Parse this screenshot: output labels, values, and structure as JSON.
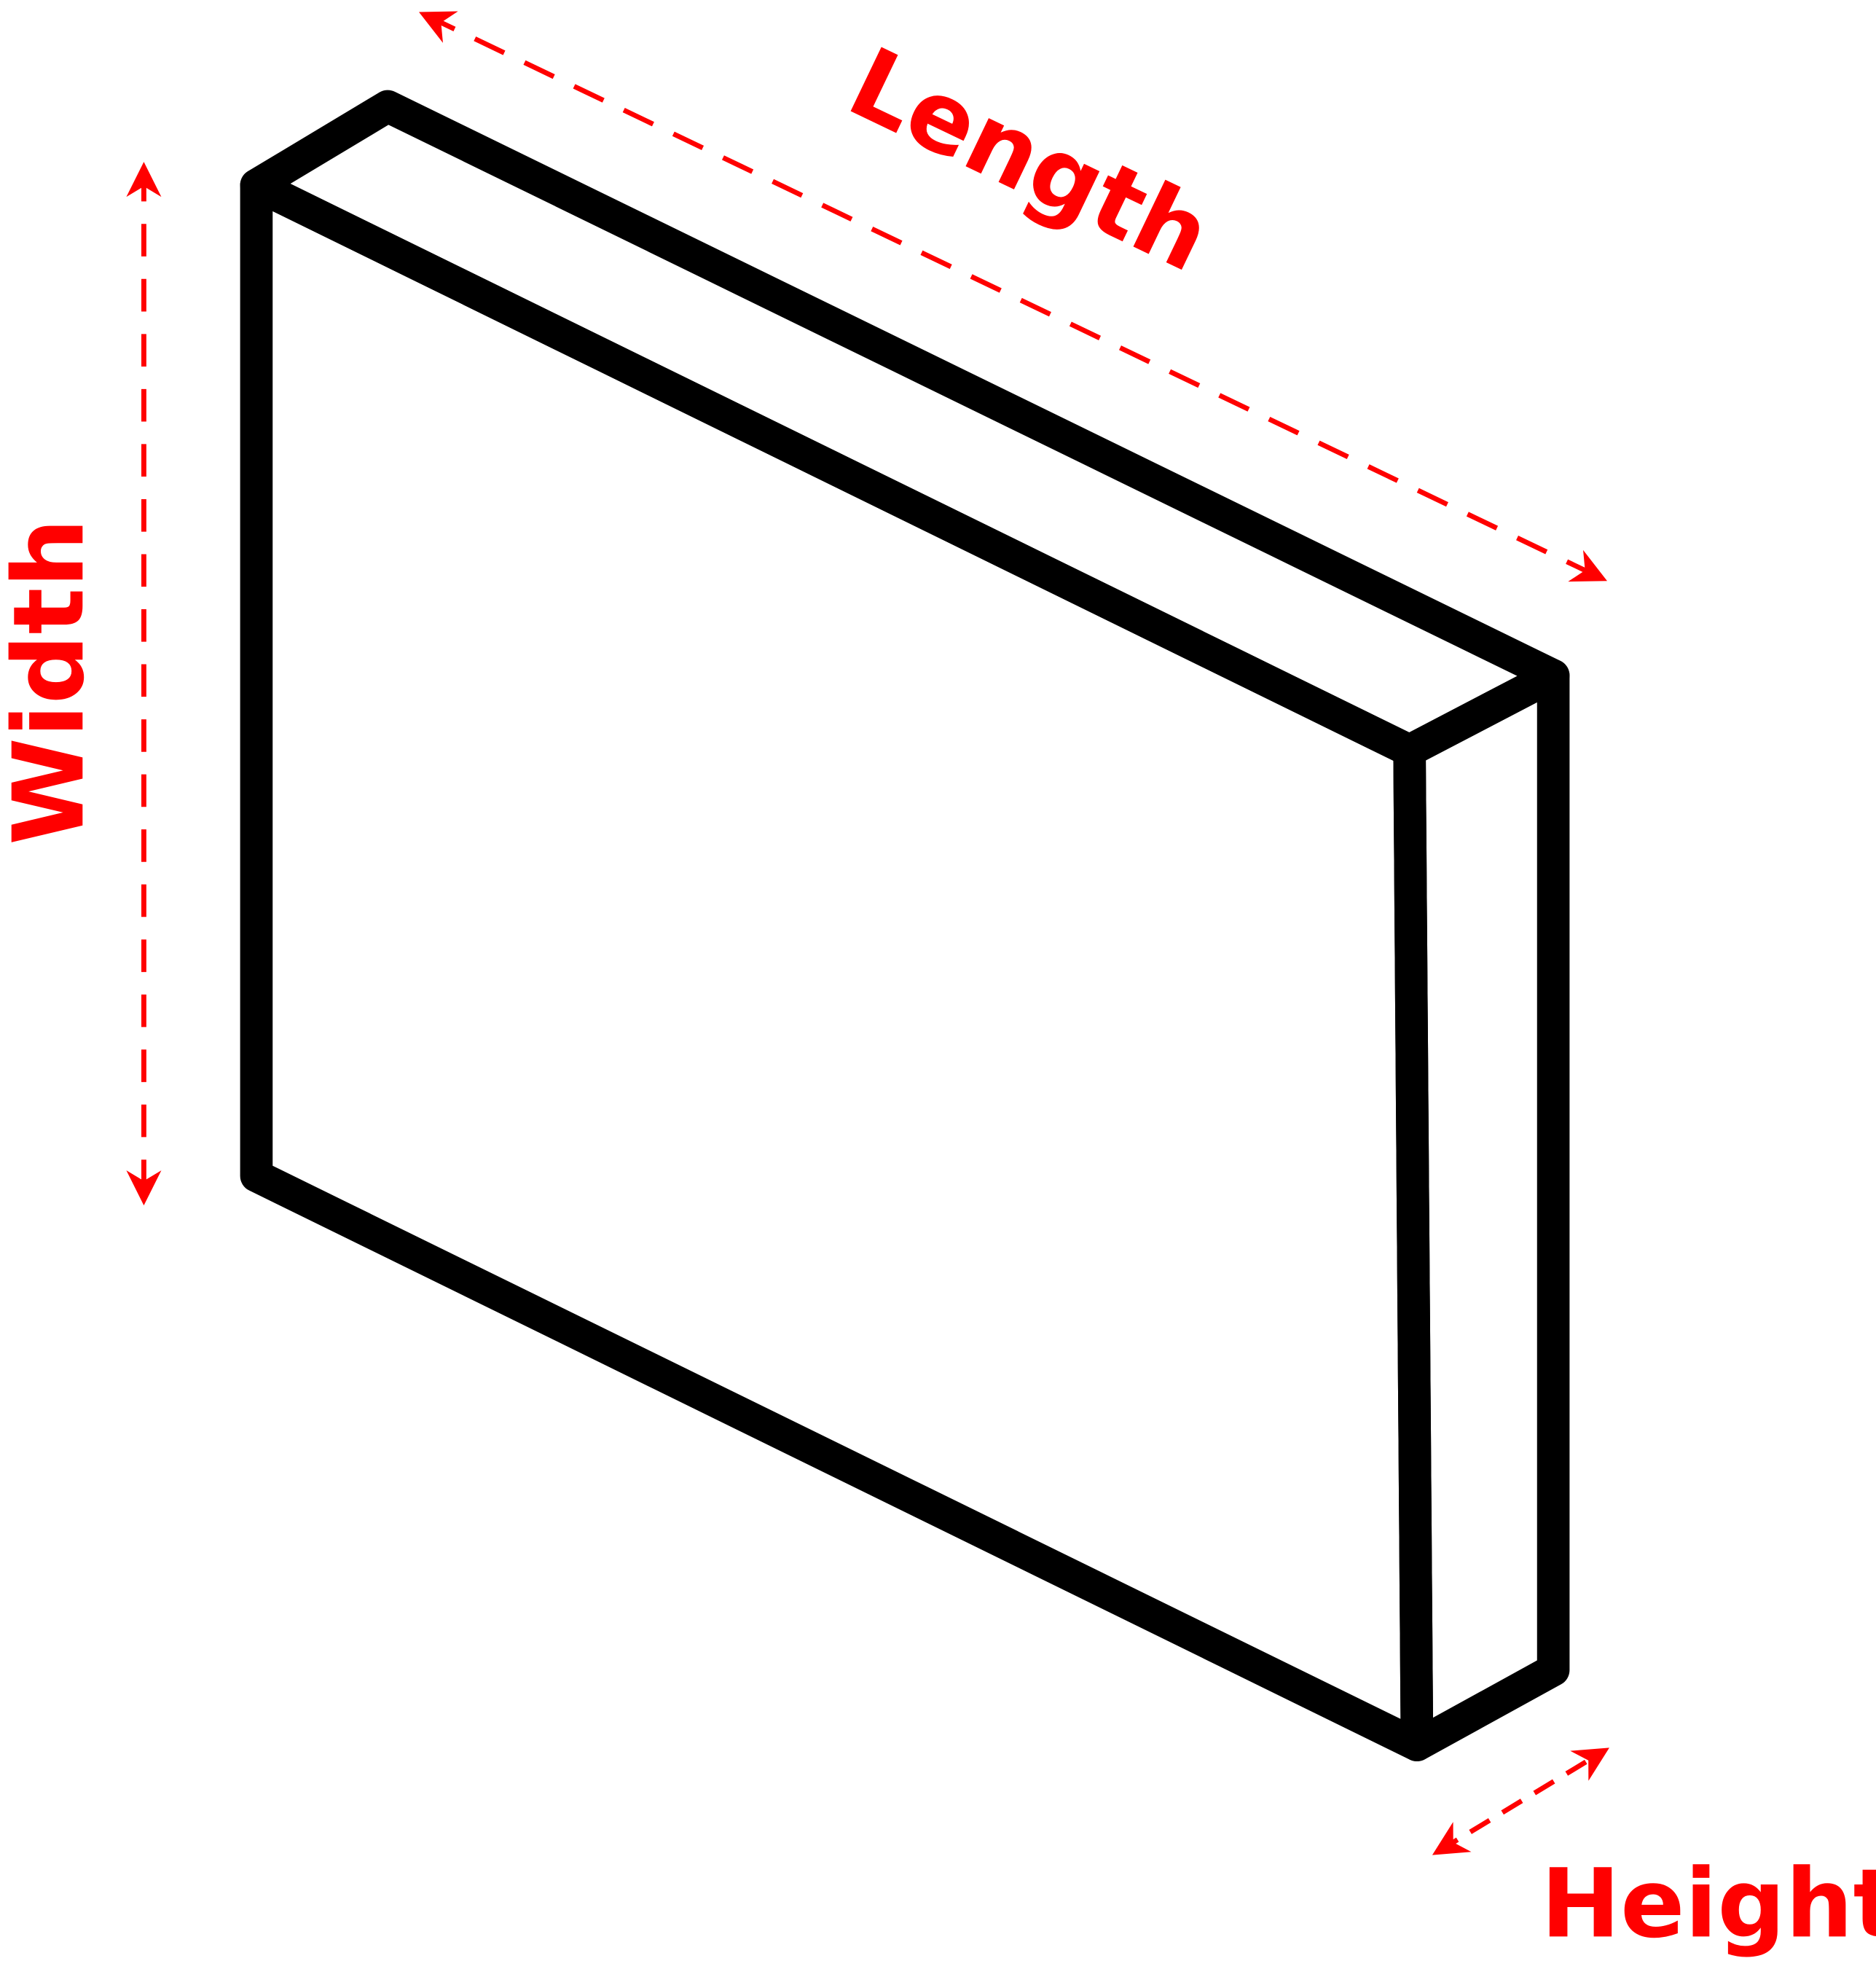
{
  "labels": {
    "length": "Length",
    "width": "Width",
    "height": "Height"
  }
}
